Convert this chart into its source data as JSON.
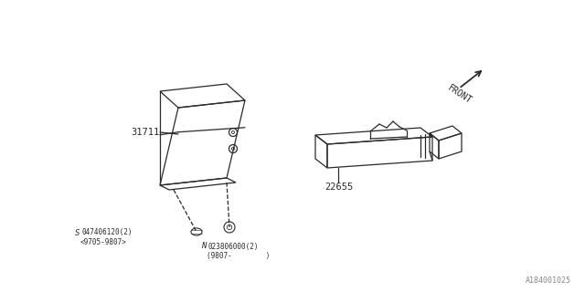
{
  "bg_color": "#ffffff",
  "line_color": "#2a2a2a",
  "fig_width": 6.4,
  "fig_height": 3.2,
  "dpi": 100,
  "part_31711_label": "31711",
  "part_22655_label": "22655",
  "front_label": "FRONT",
  "screw_label_s": "S047406120(2)",
  "screw_label_s2": "<9705-9807>",
  "screw_label_n": "N023806000(2)",
  "screw_label_n2": "(9807-        )",
  "diagram_id": "A184001025",
  "text_color": "#555555"
}
